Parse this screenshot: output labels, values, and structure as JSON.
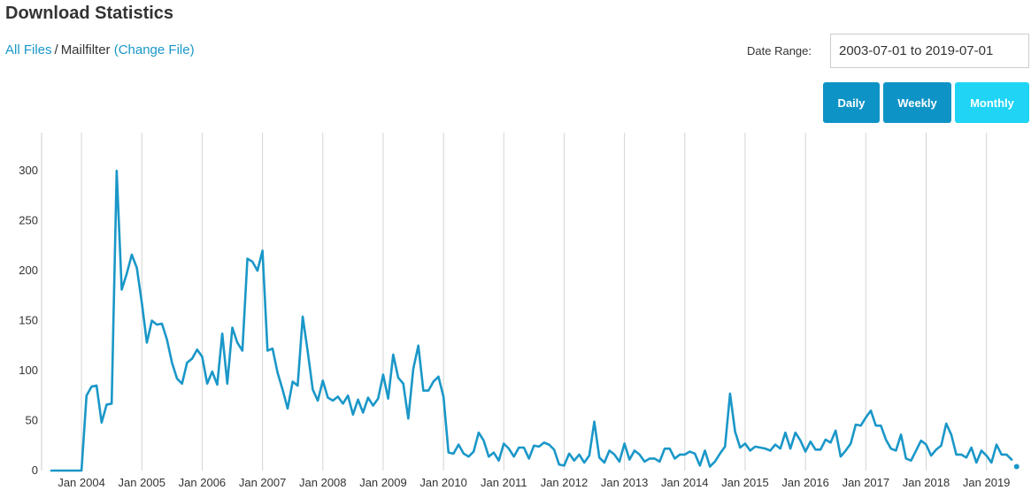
{
  "page": {
    "title": "Download Statistics"
  },
  "breadcrumb": {
    "all_files": "All Files",
    "separator": "/",
    "current": "Mailfilter",
    "change_file": "(Change File)"
  },
  "date_range": {
    "label": "Date Range:",
    "value": "2003-07-01 to 2019-07-01"
  },
  "granularity": {
    "daily": "Daily",
    "weekly": "Weekly",
    "monthly": "Monthly",
    "selected": "Monthly"
  },
  "colors": {
    "line": "#1a97c8",
    "button": "#0e93c6",
    "button_active": "#1fd4f5",
    "link": "#1a97c8"
  },
  "chart_data": {
    "type": "line",
    "x_start": "2003-07",
    "x_step": "1 month",
    "ylim": [
      0,
      320
    ],
    "yticks": [
      0,
      50,
      100,
      150,
      200,
      250,
      300
    ],
    "xticks": [
      "Jan 2004",
      "Jan 2005",
      "Jan 2006",
      "Jan 2007",
      "Jan 2008",
      "Jan 2009",
      "Jan 2010",
      "Jan 2011",
      "Jan 2012",
      "Jan 2013",
      "Jan 2014",
      "Jan 2015",
      "Jan 2016",
      "Jan 2017",
      "Jan 2018",
      "Jan 2019"
    ],
    "grid": "vertical",
    "legend": "none",
    "values": [
      0,
      0,
      0,
      0,
      0,
      0,
      0,
      75,
      84,
      85,
      48,
      66,
      67,
      300,
      181,
      197,
      216,
      203,
      168,
      128,
      150,
      146,
      147,
      131,
      108,
      92,
      87,
      108,
      112,
      121,
      114,
      87,
      99,
      86,
      137,
      87,
      143,
      128,
      120,
      212,
      209,
      200,
      220,
      120,
      122,
      98,
      81,
      62,
      89,
      85,
      154,
      119,
      81,
      70,
      90,
      73,
      70,
      74,
      67,
      75,
      56,
      71,
      58,
      73,
      65,
      72,
      96,
      72,
      116,
      93,
      87,
      52,
      102,
      125,
      80,
      80,
      89,
      94,
      74,
      18,
      17,
      26,
      17,
      14,
      19,
      38,
      30,
      14,
      18,
      10,
      27,
      22,
      14,
      23,
      23,
      12,
      25,
      24,
      28,
      26,
      21,
      6,
      5,
      17,
      10,
      16,
      8,
      15,
      49,
      13,
      8,
      20,
      16,
      9,
      27,
      11,
      20,
      16,
      9,
      12,
      12,
      9,
      22,
      22,
      12,
      16,
      16,
      19,
      17,
      5,
      20,
      4,
      9,
      17,
      24,
      77,
      39,
      23,
      27,
      20,
      24,
      23,
      22,
      20,
      26,
      22,
      38,
      22,
      38,
      30,
      19,
      29,
      21,
      21,
      31,
      28,
      40,
      14,
      20,
      27,
      46,
      45,
      53,
      60,
      45,
      45,
      31,
      22,
      20,
      36,
      12,
      10,
      20,
      30,
      26,
      15,
      21,
      25,
      47,
      36,
      16,
      16,
      13,
      23,
      8,
      20,
      15,
      8,
      26,
      16,
      16,
      11,
      4
    ]
  }
}
